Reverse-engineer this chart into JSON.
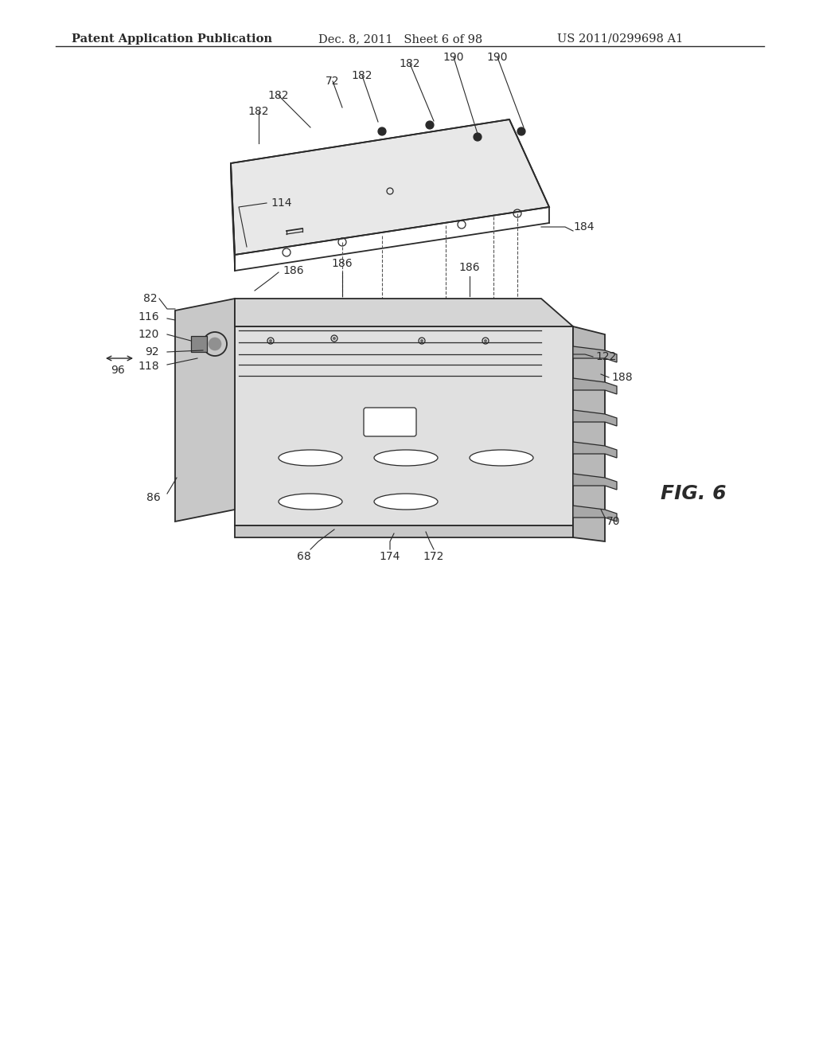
{
  "bg_color": "#ffffff",
  "header_left": "Patent Application Publication",
  "header_center": "Dec. 8, 2011   Sheet 6 of 98",
  "header_right": "US 2011/0299698 A1",
  "fig_label": "FIG. 6",
  "title_fontsize": 11,
  "header_fontsize": 10.5,
  "fig_label_fontsize": 18,
  "line_color": "#2a2a2a",
  "label_fontsize": 10
}
